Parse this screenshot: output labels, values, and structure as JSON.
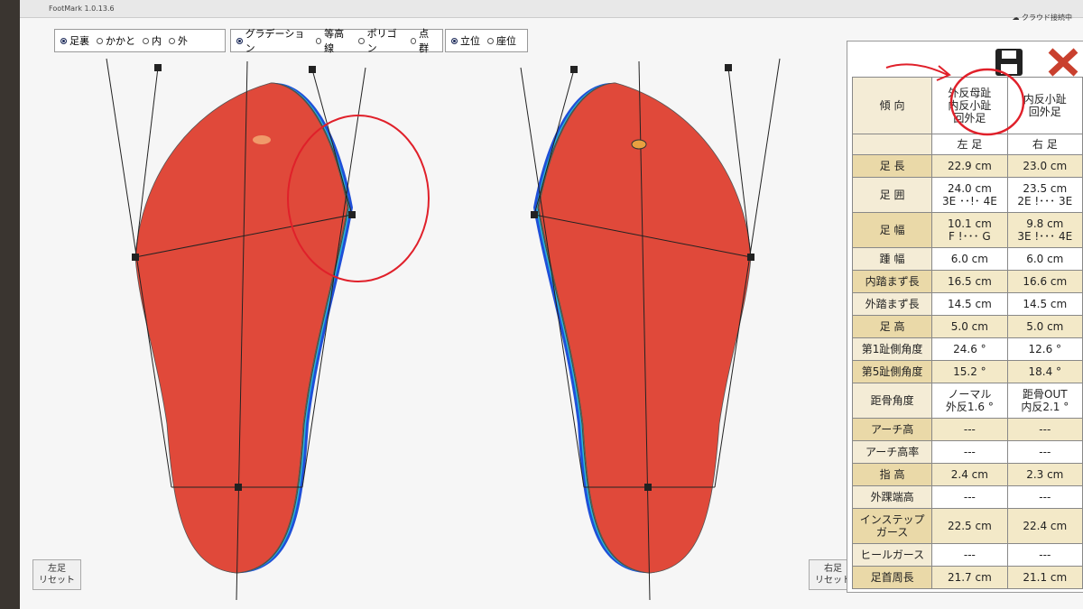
{
  "window": {
    "title": "FootMark 1.0.13.6",
    "cloud_status": "クラウド接続中"
  },
  "view_options": [
    {
      "options": [
        "足裏",
        "かかと",
        "内",
        "外"
      ],
      "selected": 0
    },
    {
      "options": [
        "グラデーション",
        "等高線",
        "ポリゴン",
        "点群"
      ],
      "selected": 0
    },
    {
      "options": [
        "立位",
        "座位"
      ],
      "selected": 0
    }
  ],
  "buttons": {
    "left_reset": [
      "左足",
      "リセット"
    ],
    "right_reset": [
      "右足",
      "リセット"
    ]
  },
  "table": {
    "header": [
      [
        "傾 向"
      ],
      [
        "外反母趾",
        "内反小趾",
        "回外足"
      ],
      [
        "内反小趾",
        "回外足"
      ]
    ],
    "columns": [
      "左 足",
      "右 足"
    ],
    "rows": [
      [
        [
          "足 長"
        ],
        [
          "22.9 cm"
        ],
        [
          "23.0 cm"
        ]
      ],
      [
        [
          "足 囲"
        ],
        [
          "24.0 cm",
          "3E ･･!･ 4E"
        ],
        [
          "23.5 cm",
          "2E !･･･ 3E"
        ]
      ],
      [
        [
          "足 幅"
        ],
        [
          "10.1 cm",
          "F !･･･ G"
        ],
        [
          "9.8 cm",
          "3E !･･･ 4E"
        ]
      ],
      [
        [
          "踵 幅"
        ],
        [
          "6.0 cm"
        ],
        [
          "6.0 cm"
        ]
      ],
      [
        [
          "内踏まず長"
        ],
        [
          "16.5 cm"
        ],
        [
          "16.6 cm"
        ]
      ],
      [
        [
          "外踏まず長"
        ],
        [
          "14.5 cm"
        ],
        [
          "14.5 cm"
        ]
      ],
      [
        [
          "足 高"
        ],
        [
          "5.0 cm"
        ],
        [
          "5.0 cm"
        ]
      ],
      [
        [
          "第1趾側角度"
        ],
        [
          "24.6 °"
        ],
        [
          "12.6 °"
        ]
      ],
      [
        [
          "第5趾側角度"
        ],
        [
          "15.2 °"
        ],
        [
          "18.4 °"
        ]
      ],
      [
        [
          "距骨角度"
        ],
        [
          "ノーマル",
          "外反1.6 °"
        ],
        [
          "距骨OUT",
          "内反2.1 °"
        ]
      ],
      [
        [
          "アーチ高"
        ],
        [
          "---"
        ],
        [
          "---"
        ]
      ],
      [
        [
          "アーチ高率"
        ],
        [
          "---"
        ],
        [
          "---"
        ]
      ],
      [
        [
          "指 高"
        ],
        [
          "2.4 cm"
        ],
        [
          "2.3 cm"
        ]
      ],
      [
        [
          "外踝端高"
        ],
        [
          "---"
        ],
        [
          "---"
        ]
      ],
      [
        [
          "インステップ",
          "ガース"
        ],
        [
          "22.5 cm"
        ],
        [
          "22.4 cm"
        ]
      ],
      [
        [
          "ヒールガース"
        ],
        [
          "---"
        ],
        [
          "---"
        ]
      ],
      [
        [
          "足首周長"
        ],
        [
          "21.7 cm"
        ],
        [
          "21.1 cm"
        ]
      ]
    ]
  }
}
